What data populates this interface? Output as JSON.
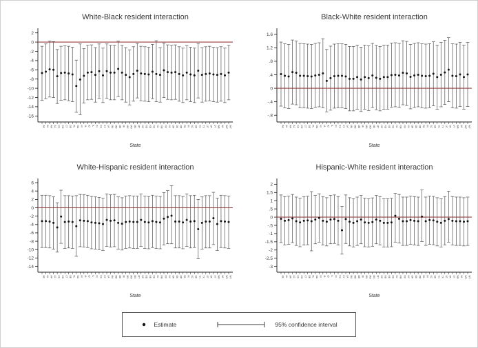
{
  "figure": {
    "background": "#ffffff",
    "border_color": "#cfcfcf"
  },
  "colors": {
    "ref_line": "#9a3c3c",
    "marker": "#141414",
    "ci": "#4f4f4f",
    "axis": "#1a1a1a",
    "tick_text": "#3a3a3a",
    "title_text": "#383838"
  },
  "legend": {
    "estimate_label": "Estimate",
    "ci_label": "95% confidence interval"
  },
  "chart_data": {
    "type": "scatter-ci",
    "legend_position": "bottom-center-boxed",
    "grid": false,
    "shared_categories": [
      "AK",
      "AL",
      "AR",
      "AZ",
      "CA",
      "CO",
      "CT",
      "DE",
      "FL",
      "GA",
      "HI",
      "IA",
      "ID",
      "IL",
      "IN",
      "KS",
      "KY",
      "LA",
      "MA",
      "MD",
      "ME",
      "MI",
      "MN",
      "MO",
      "MS",
      "MT",
      "NC",
      "ND",
      "NE",
      "NH",
      "NJ",
      "NM",
      "NV",
      "NY",
      "OH",
      "OK",
      "OR",
      "PA",
      "RI",
      "SC",
      "SD",
      "TN",
      "TX",
      "UT",
      "VA",
      "VT",
      "WA",
      "WI",
      "WV",
      "WY"
    ],
    "panels": [
      {
        "title": "White-Black resident interaction",
        "xlabel": "State",
        "ylim": [
          -17.3,
          3.0
        ],
        "ref_line": 0,
        "yticks": [
          2,
          0,
          -2,
          -4,
          -6,
          -8,
          -10,
          -12,
          -14,
          -16
        ],
        "ytick_labels": [
          "2",
          "0",
          "-2",
          "-4",
          "-6",
          "-8",
          "-10",
          "-12",
          "-14",
          "-16"
        ],
        "estimates": [
          -6.7,
          -6.4,
          -5.9,
          -6.0,
          -7.4,
          -6.7,
          -6.6,
          -6.8,
          -7.0,
          -9.5,
          -8.1,
          -7.3,
          -6.6,
          -6.5,
          -7.1,
          -6.3,
          -7.2,
          -6.3,
          -6.6,
          -6.6,
          -5.8,
          -6.6,
          -7.1,
          -7.6,
          -6.9,
          -6.2,
          -6.8,
          -6.9,
          -7.0,
          -6.4,
          -6.9,
          -7.1,
          -6.1,
          -6.5,
          -6.6,
          -6.5,
          -6.9,
          -7.2,
          -6.6,
          -7.0,
          -7.2,
          -6.2,
          -7.1,
          -6.9,
          -6.8,
          -7.0,
          -7.1,
          -6.9,
          -7.2,
          -6.6
        ],
        "ci_high": [
          -0.9,
          -0.4,
          0.2,
          0.1,
          -1.6,
          -0.9,
          -0.8,
          -0.9,
          -1.1,
          -3.9,
          -0.4,
          -1.4,
          -0.7,
          -0.6,
          -1.2,
          -0.4,
          -1.3,
          -0.4,
          -0.7,
          -0.7,
          0.2,
          -0.7,
          -1.2,
          -1.7,
          -1.0,
          -0.3,
          -0.9,
          -1.0,
          -1.1,
          -0.5,
          0.3,
          -1.2,
          -0.2,
          -0.6,
          -0.7,
          -0.6,
          -1.0,
          -1.3,
          -0.7,
          -1.1,
          -1.3,
          -0.3,
          -1.2,
          -1.0,
          -0.9,
          -1.1,
          -1.2,
          -1.0,
          -1.3,
          -0.7
        ],
        "ci_low": [
          -12.6,
          -12.3,
          -11.9,
          -12.0,
          -13.3,
          -12.6,
          -12.5,
          -12.7,
          -12.9,
          -15.2,
          -15.7,
          -13.2,
          -12.5,
          -12.4,
          -13.0,
          -12.2,
          -13.1,
          -12.2,
          -12.5,
          -12.5,
          -11.8,
          -12.5,
          -13.0,
          -13.6,
          -12.8,
          -12.1,
          -12.7,
          -12.8,
          -12.9,
          -12.3,
          -12.9,
          -13.0,
          -12.0,
          -12.4,
          -12.5,
          -12.4,
          -12.8,
          -13.1,
          -12.5,
          -12.9,
          -13.1,
          -12.1,
          -13.0,
          -12.8,
          -12.7,
          -12.9,
          -13.0,
          -12.8,
          -13.1,
          -12.5
        ]
      },
      {
        "title": "Black-White resident interaction",
        "xlabel": "State",
        "ylim": [
          -1.0,
          1.78
        ],
        "ref_line": 0,
        "yticks": [
          1.6,
          1.2,
          0.8,
          0.4,
          0,
          -0.4,
          -0.8
        ],
        "ytick_labels": [
          "1.6",
          "1.2",
          ".8",
          ".4",
          "0",
          "-.4",
          "-.8"
        ],
        "estimates": [
          0.42,
          0.37,
          0.35,
          0.48,
          0.46,
          0.37,
          0.37,
          0.36,
          0.35,
          0.38,
          0.4,
          0.44,
          0.22,
          0.3,
          0.36,
          0.37,
          0.37,
          0.35,
          0.28,
          0.28,
          0.33,
          0.26,
          0.33,
          0.3,
          0.38,
          0.31,
          0.28,
          0.33,
          0.33,
          0.39,
          0.4,
          0.38,
          0.46,
          0.44,
          0.34,
          0.38,
          0.4,
          0.37,
          0.36,
          0.37,
          0.43,
          0.33,
          0.4,
          0.47,
          0.55,
          0.37,
          0.36,
          0.41,
          0.33,
          0.41
        ],
        "ci_high": [
          1.37,
          1.32,
          1.3,
          1.43,
          1.4,
          1.33,
          1.32,
          1.31,
          1.3,
          1.33,
          1.35,
          1.47,
          1.15,
          1.25,
          1.31,
          1.32,
          1.32,
          1.3,
          1.24,
          1.24,
          1.28,
          1.22,
          1.28,
          1.26,
          1.33,
          1.27,
          1.24,
          1.28,
          1.28,
          1.34,
          1.35,
          1.33,
          1.41,
          1.39,
          1.3,
          1.33,
          1.35,
          1.32,
          1.31,
          1.32,
          1.38,
          1.28,
          1.36,
          1.42,
          1.5,
          1.32,
          1.31,
          1.36,
          1.28,
          1.36
        ],
        "ci_low": [
          -0.53,
          -0.58,
          -0.6,
          -0.47,
          -0.49,
          -0.58,
          -0.58,
          -0.59,
          -0.6,
          -0.57,
          -0.55,
          -0.58,
          -0.7,
          -0.65,
          -0.59,
          -0.58,
          -0.58,
          -0.6,
          -0.67,
          -0.67,
          -0.62,
          -0.69,
          -0.62,
          -0.66,
          -0.57,
          -0.64,
          -0.67,
          -0.62,
          -0.62,
          -0.56,
          -0.55,
          -0.57,
          -0.49,
          -0.51,
          -0.61,
          -0.57,
          -0.55,
          -0.58,
          -0.59,
          -0.58,
          -0.52,
          -0.62,
          -0.55,
          -0.48,
          -0.4,
          -0.58,
          -0.59,
          -0.54,
          -0.62,
          -0.54
        ]
      },
      {
        "title": "White-Hispanic resident interaction",
        "xlabel": "State",
        "ylim": [
          -15.4,
          7.0
        ],
        "ref_line": 0,
        "yticks": [
          6,
          4,
          2,
          0,
          -2,
          -4,
          -6,
          -8,
          -10,
          -12,
          -14
        ],
        "ytick_labels": [
          "6",
          "4",
          "2",
          "0",
          "-2",
          "-4",
          "-6",
          "-8",
          "-10",
          "-12",
          "-14"
        ],
        "estimates": [
          -3.2,
          -3.2,
          -3.3,
          -3.6,
          -4.7,
          -2.1,
          -3.4,
          -3.3,
          -3.4,
          -4.4,
          -3.0,
          -3.1,
          -3.2,
          -3.5,
          -3.6,
          -3.7,
          -3.9,
          -2.9,
          -3.1,
          -3.0,
          -3.6,
          -3.8,
          -3.4,
          -3.3,
          -3.4,
          -3.4,
          -2.9,
          -3.4,
          -3.5,
          -3.2,
          -3.4,
          -3.5,
          -2.6,
          -2.2,
          -1.9,
          -3.3,
          -3.3,
          -3.5,
          -2.9,
          -3.3,
          -3.2,
          -5.1,
          -3.6,
          -3.3,
          -3.3,
          -2.5,
          -3.9,
          -3.2,
          -3.3,
          -3.4
        ],
        "ci_high": [
          3.0,
          3.0,
          2.9,
          2.6,
          1.2,
          4.2,
          2.9,
          2.9,
          2.8,
          2.9,
          3.2,
          3.1,
          3.0,
          2.7,
          2.6,
          2.5,
          2.3,
          3.3,
          3.1,
          3.2,
          2.6,
          2.4,
          2.8,
          2.9,
          2.8,
          2.8,
          3.3,
          2.8,
          2.7,
          3.0,
          2.8,
          2.7,
          3.6,
          4.1,
          5.3,
          2.9,
          2.9,
          2.7,
          3.3,
          2.9,
          3.0,
          2.0,
          2.6,
          2.9,
          2.9,
          3.7,
          2.3,
          3.0,
          2.9,
          2.8
        ],
        "ci_low": [
          -9.5,
          -9.5,
          -9.6,
          -9.9,
          -10.6,
          -8.5,
          -9.7,
          -9.6,
          -9.7,
          -11.6,
          -9.3,
          -9.4,
          -9.5,
          -9.8,
          -9.9,
          -10.0,
          -10.2,
          -9.2,
          -9.4,
          -9.3,
          -9.9,
          -10.1,
          -9.7,
          -9.6,
          -9.7,
          -9.7,
          -9.2,
          -9.7,
          -9.8,
          -9.5,
          -9.7,
          -9.8,
          -8.9,
          -8.6,
          -8.6,
          -9.6,
          -9.6,
          -9.8,
          -9.2,
          -9.6,
          -9.5,
          -12.2,
          -9.9,
          -9.6,
          -9.6,
          -8.8,
          -10.2,
          -9.5,
          -9.6,
          -9.7
        ]
      },
      {
        "title": "Hispanic-White resident interaction",
        "xlabel": "State",
        "ylim": [
          -3.35,
          2.35
        ],
        "ref_line": 0,
        "yticks": [
          2,
          1.5,
          1,
          0.5,
          0,
          -0.5,
          -1,
          -1.5,
          -2,
          -2.5,
          -3
        ],
        "ytick_labels": [
          "2",
          "1.5",
          "1",
          ".5",
          "0",
          "-.5",
          "-1",
          "-1.5",
          "-2",
          "-2.5",
          "-3"
        ],
        "estimates": [
          -0.1,
          -0.22,
          -0.18,
          -0.08,
          -0.25,
          -0.32,
          -0.22,
          -0.2,
          -0.25,
          -0.15,
          -0.05,
          -0.22,
          -0.28,
          -0.15,
          -0.12,
          -0.22,
          -0.8,
          -0.12,
          -0.28,
          -0.35,
          -0.25,
          -0.15,
          -0.32,
          -0.35,
          -0.3,
          -0.15,
          -0.22,
          -0.35,
          -0.35,
          -0.32,
          0.08,
          -0.1,
          -0.25,
          -0.25,
          -0.18,
          -0.22,
          -0.25,
          0.03,
          -0.25,
          -0.18,
          -0.2,
          -0.28,
          -0.35,
          -0.22,
          -0.12,
          -0.22,
          -0.25,
          -0.25,
          -0.28,
          -0.25
        ],
        "ci_high": [
          1.35,
          1.25,
          1.28,
          1.38,
          1.22,
          1.15,
          1.25,
          1.27,
          1.55,
          1.32,
          1.42,
          1.25,
          1.18,
          1.32,
          1.35,
          1.25,
          0.65,
          1.35,
          1.18,
          1.12,
          1.22,
          1.32,
          1.15,
          1.12,
          1.17,
          1.32,
          1.25,
          1.12,
          1.12,
          1.15,
          1.45,
          1.38,
          1.22,
          1.22,
          1.28,
          1.25,
          1.22,
          1.65,
          1.22,
          1.28,
          1.26,
          1.18,
          1.12,
          1.25,
          1.58,
          1.25,
          1.22,
          1.22,
          1.18,
          1.22
        ],
        "ci_low": [
          -1.55,
          -1.7,
          -1.65,
          -1.55,
          -1.72,
          -1.8,
          -1.7,
          -1.68,
          -2.05,
          -1.62,
          -1.52,
          -1.7,
          -1.75,
          -1.62,
          -1.6,
          -1.7,
          -2.25,
          -1.6,
          -1.75,
          -1.82,
          -1.72,
          -1.62,
          -1.8,
          -1.82,
          -1.77,
          -1.62,
          -1.7,
          -1.82,
          -1.82,
          -1.8,
          -1.52,
          -1.58,
          -1.72,
          -1.72,
          -1.65,
          -1.7,
          -1.72,
          -1.48,
          -1.72,
          -1.65,
          -1.68,
          -1.75,
          -1.82,
          -1.7,
          -1.52,
          -1.7,
          -1.72,
          -1.72,
          -1.75,
          -1.72
        ]
      }
    ]
  }
}
